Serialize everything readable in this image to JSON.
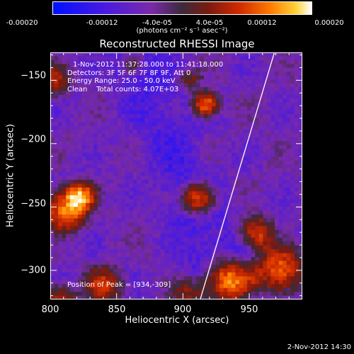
{
  "colorbar": {
    "ticks": [
      "-0.00020",
      "-0.00012",
      "-4.0e-05",
      "4.0e-05",
      "0.00012",
      "0.00020"
    ],
    "units": "(photons cm⁻² s⁻¹ asec⁻²)"
  },
  "info": {
    "time": "1-Nov-2012 11:37:28.000 to 11:41:18.000",
    "detectors": "Detectors: 3F 5F 6F 7F 8F 9F, Att 0",
    "energy": "Energy Range: 25.0 - 50.0 keV",
    "clean": "Clean    Total counts: 4.07E+03",
    "peak": "Position of Peak = [934,-309]"
  },
  "timestamp": "2-Nov-2012 14:30",
  "chart_data": {
    "type": "heatmap",
    "title": "Reconstructed RHESSI Image",
    "xlabel": "Heliocentric X (arcsec)",
    "ylabel": "Heliocentric Y (arcsec)",
    "xlim": [
      800,
      990
    ],
    "ylim": [
      -323,
      -128
    ],
    "x_ticks": [
      800,
      850,
      900,
      950
    ],
    "y_ticks": [
      -150,
      -200,
      -250,
      -300
    ],
    "x_tick_labels": [
      "800",
      "850",
      "900",
      "950"
    ],
    "y_tick_labels": [
      "−150",
      "−200",
      "−250",
      "−300"
    ],
    "colorbar_range": [
      -0.0002,
      0.0002
    ],
    "sources": [
      {
        "x": 934,
        "y": -309,
        "strength": 1.0,
        "radius": 14
      },
      {
        "x": 912,
        "y": -243,
        "strength": 0.9,
        "radius": 10
      },
      {
        "x": 917,
        "y": -169,
        "strength": 0.85,
        "radius": 8
      },
      {
        "x": 812,
        "y": -252,
        "strength": 0.85,
        "radius": 13
      },
      {
        "x": 824,
        "y": -240,
        "strength": 0.6,
        "radius": 9
      },
      {
        "x": 972,
        "y": -300,
        "strength": 0.75,
        "radius": 15
      },
      {
        "x": 955,
        "y": -270,
        "strength": 0.7,
        "radius": 10
      },
      {
        "x": 840,
        "y": -312,
        "strength": 0.55,
        "radius": 12
      },
      {
        "x": 802,
        "y": -150,
        "strength": 0.5,
        "radius": 10
      },
      {
        "x": 808,
        "y": -322,
        "strength": 0.55,
        "radius": 9
      },
      {
        "x": 905,
        "y": -150,
        "strength": 0.4,
        "radius": 7
      },
      {
        "x": 862,
        "y": -136,
        "strength": 0.35,
        "radius": 6
      },
      {
        "x": 905,
        "y": -318,
        "strength": 0.5,
        "radius": 10
      }
    ],
    "limb_line": [
      [
        913,
        -323
      ],
      [
        969,
        -128
      ]
    ],
    "peak": [
      934,
      -309
    ]
  }
}
